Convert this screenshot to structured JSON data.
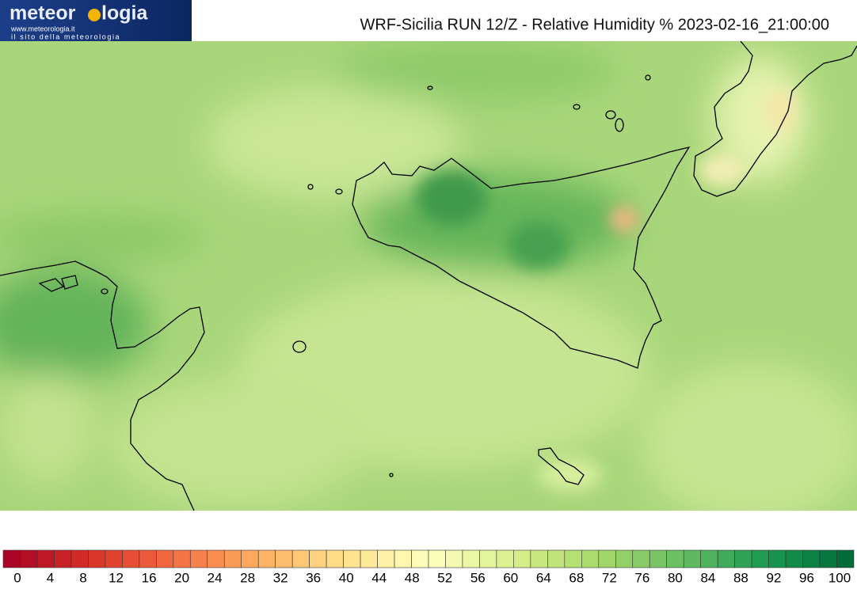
{
  "logo": {
    "name_left": "meteor",
    "name_right": "logia",
    "url": "www.meteorologia.it",
    "tagline": "il sito della meteorologia"
  },
  "title": "WRF-Sicilia RUN 12/Z - Relative Humidity % 2023-02-16_21:00:00",
  "colorbar": {
    "ticks": [
      0,
      4,
      8,
      12,
      16,
      20,
      24,
      28,
      32,
      36,
      40,
      44,
      48,
      52,
      56,
      60,
      64,
      68,
      72,
      76,
      80,
      84,
      88,
      92,
      96,
      100
    ],
    "colors": [
      "#a50026",
      "#d73027",
      "#f46d43",
      "#fdae61",
      "#fee08b",
      "#ffffbf",
      "#d9ef8b",
      "#a6d96a",
      "#66bd63",
      "#1a9850",
      "#006837"
    ]
  }
}
